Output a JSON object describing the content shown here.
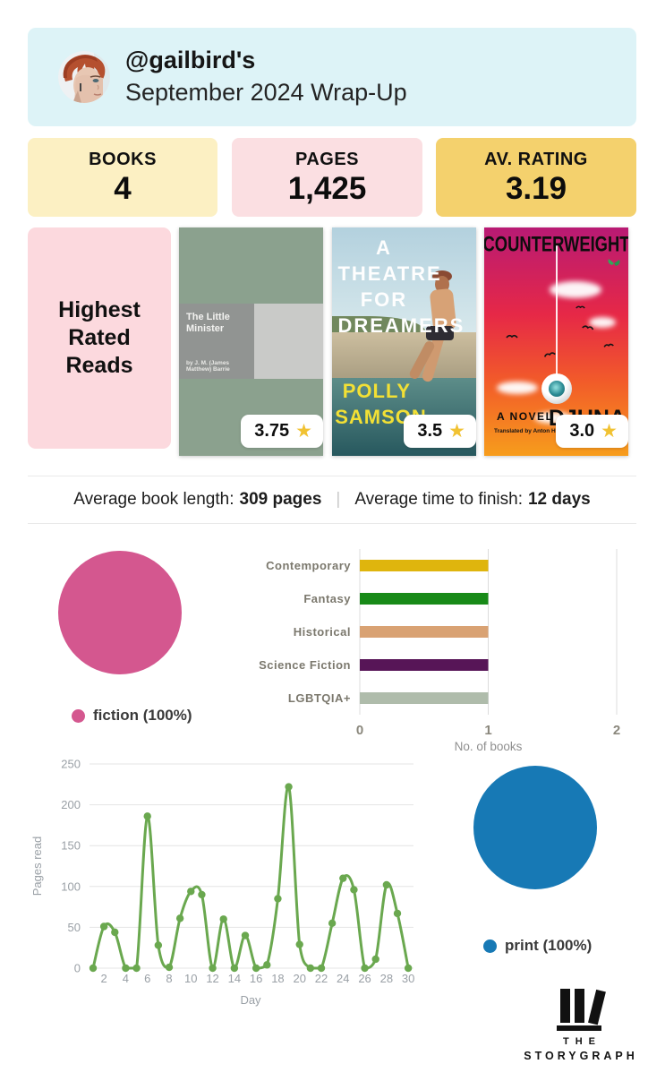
{
  "header": {
    "title": "@gailbird's",
    "subtitle": "September 2024 Wrap-Up"
  },
  "stats": [
    {
      "label": "BOOKS",
      "value": "4",
      "bg": "#fcf0c3"
    },
    {
      "label": "PAGES",
      "value": "1,425",
      "bg": "#fbdfe2"
    },
    {
      "label": "AV. RATING",
      "value": "3.19",
      "bg": "#f4d16d"
    }
  ],
  "highest_rated": {
    "heading": "Highest Rated Reads",
    "books": [
      {
        "title": "The Little Minister",
        "author": "by J. M. (James Matthew) Barrie",
        "rating": "3.75"
      },
      {
        "title": "A\nTHEATRE\nFOR\nDREAMERS",
        "author": "POLLY\nSAMSON",
        "rating": "3.5"
      },
      {
        "title": "COUNTERWEIGHT",
        "novel_label": "A NOVEL",
        "translator": "Translated by Anton Hur",
        "author": "DJUNA",
        "rating": "3.0"
      }
    ],
    "star_color": "#f1c232"
  },
  "averages": {
    "book_length_label": "Average book length:",
    "book_length_value": "309 pages",
    "separator": "|",
    "time_label": "Average time to finish:",
    "time_value": "12 days"
  },
  "chart_data": [
    {
      "id": "fiction-pie",
      "type": "pie",
      "slices": [
        {
          "label": "fiction",
          "value": 100,
          "color": "#d4578f"
        }
      ],
      "legend": "fiction (100%)",
      "legend_position": "bottom"
    },
    {
      "id": "genre-bars",
      "type": "bar",
      "orientation": "horizontal",
      "categories": [
        "Contemporary",
        "Fantasy",
        "Historical",
        "Science Fiction",
        "LGBTQIA+"
      ],
      "values": [
        1,
        1,
        1,
        1,
        1
      ],
      "colors": [
        "#dfb50d",
        "#188a18",
        "#d9a273",
        "#571557",
        "#afbcab"
      ],
      "xlabel": "No. of books",
      "xlim": [
        0,
        2
      ],
      "xticks": [
        0,
        1,
        2
      ],
      "grid": true
    },
    {
      "id": "pages-line",
      "type": "line",
      "x": [
        1,
        2,
        3,
        4,
        5,
        6,
        7,
        8,
        9,
        10,
        11,
        12,
        13,
        14,
        15,
        16,
        17,
        18,
        19,
        20,
        21,
        22,
        23,
        24,
        25,
        26,
        27,
        28,
        29,
        30
      ],
      "y": [
        0,
        51,
        44,
        0,
        0,
        186,
        28,
        1,
        61,
        94,
        90,
        0,
        60,
        0,
        40,
        0,
        4,
        85,
        222,
        29,
        0,
        0,
        55,
        110,
        96,
        0,
        11,
        102,
        67,
        0
      ],
      "color": "#6aa84f",
      "xlabel": "Day",
      "ylabel": "Pages read",
      "ylim": [
        0,
        250
      ],
      "yticks": [
        0,
        50,
        100,
        150,
        200,
        250
      ],
      "xticks": [
        2,
        4,
        6,
        8,
        10,
        12,
        14,
        16,
        18,
        20,
        22,
        24,
        26,
        28,
        30
      ],
      "grid": true
    },
    {
      "id": "print-pie",
      "type": "pie",
      "slices": [
        {
          "label": "print",
          "value": 100,
          "color": "#1779b5"
        }
      ],
      "legend": "print (100%)",
      "legend_position": "bottom"
    }
  ],
  "logo": {
    "top": "THE",
    "bottom": "STORYGRAPH"
  }
}
